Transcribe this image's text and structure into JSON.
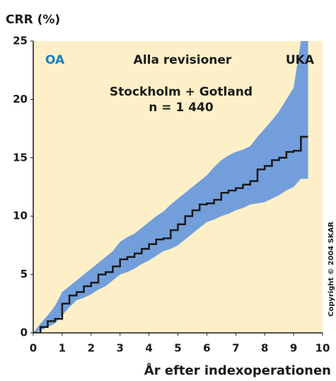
{
  "chart_data": {
    "type": "line",
    "y_label": "CRR (%)",
    "x_label": "År efter indexoperationen",
    "annotations": [
      "OA",
      "Alla revisioner",
      "UKA",
      "Stockholm + Gotland",
      "n = 1 440"
    ],
    "copyright": "Copyright © 2004 SKAR",
    "x": [
      0,
      0.25,
      0.5,
      0.75,
      1,
      1.25,
      1.5,
      1.75,
      2,
      2.25,
      2.5,
      2.75,
      3,
      3.25,
      3.5,
      3.75,
      4,
      4.25,
      4.5,
      4.75,
      5,
      5.25,
      5.5,
      5.75,
      6,
      6.25,
      6.5,
      6.75,
      7,
      7.25,
      7.5,
      7.75,
      8,
      8.25,
      8.5,
      8.75,
      9,
      9.25,
      9.5
    ],
    "values": [
      0,
      0.5,
      1,
      1.2,
      2.5,
      3.2,
      3.5,
      4,
      4.3,
      5,
      5.2,
      5.7,
      6.3,
      6.5,
      6.8,
      7.2,
      7.6,
      8,
      8.1,
      8.8,
      9.3,
      10,
      10.5,
      11,
      11.1,
      11.4,
      12,
      12.2,
      12.4,
      12.7,
      13,
      14,
      14.3,
      14.8,
      15,
      15.5,
      15.6,
      16.8,
      16.8
    ],
    "color": "#1a1a1a",
    "band": {
      "lower": [
        0,
        0.2,
        0.5,
        0.8,
        1.5,
        2.2,
        2.8,
        3,
        3.3,
        3.7,
        4,
        4.5,
        5,
        5.2,
        5.5,
        5.9,
        6.2,
        6.6,
        7,
        7.2,
        7.5,
        8,
        8.5,
        9,
        9.5,
        9.7,
        10,
        10.2,
        10.5,
        10.7,
        11,
        11.1,
        11.2,
        11.5,
        11.8,
        12.2,
        12.5,
        13.2,
        13.2
      ],
      "upper": [
        0,
        0.8,
        1.5,
        2.3,
        3.5,
        4,
        4.5,
        5,
        5.5,
        6,
        6.5,
        7,
        7.8,
        8.2,
        8.5,
        9,
        9.5,
        10,
        10.4,
        11,
        11.5,
        12,
        12.5,
        13,
        13.5,
        14.2,
        14.8,
        15.2,
        15.5,
        15.7,
        16,
        16.8,
        17.5,
        18.2,
        19,
        20,
        21,
        25,
        25
      ],
      "color": "#729fdb"
    },
    "background": "#fdf0c8",
    "xlim": [
      0,
      10
    ],
    "ylim": [
      0,
      25
    ],
    "xticks": [
      0,
      1,
      2,
      3,
      4,
      5,
      6,
      7,
      8,
      9,
      10
    ],
    "yticks": [
      0,
      5,
      10,
      15,
      20,
      25
    ]
  }
}
